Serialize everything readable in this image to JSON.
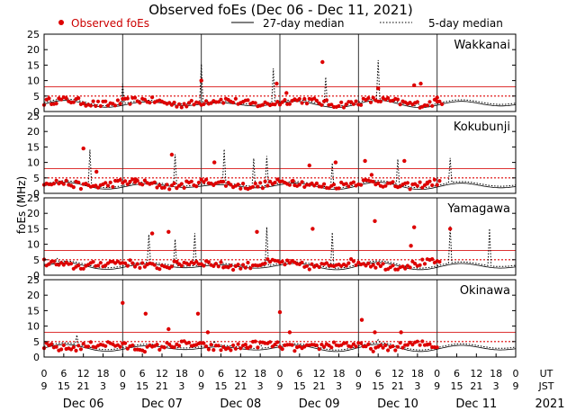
{
  "chart_data": {
    "type": "scatter",
    "title": "Observed foEs (Dec 06 - Dec 11, 2021)",
    "ylabel": "foEs (MHz)",
    "ylim": [
      0,
      25
    ],
    "yticks": [
      0,
      5,
      10,
      15,
      20,
      25
    ],
    "xlim_hours": [
      0,
      144
    ],
    "legend": {
      "observed": "Observed foEs",
      "median27": "27-day median",
      "median5": "5-day median"
    },
    "colors": {
      "observed": "#dd0000",
      "threshold_solid": "#dd3333",
      "threshold_dotted": "#dd0000",
      "median_lines": "#000000",
      "frame": "#000000"
    },
    "thresholds_mhz": {
      "solid": 8,
      "dotted": 5
    },
    "day_boundaries_hours": [
      24,
      48,
      72,
      96,
      120
    ],
    "x_tick_ut_labels": [
      "0",
      "6",
      "12",
      "18",
      "0",
      "6",
      "12",
      "18",
      "0",
      "6",
      "12",
      "18",
      "0",
      "6",
      "12",
      "18",
      "0",
      "6",
      "12",
      "18",
      "0",
      "6",
      "12",
      "18",
      "0"
    ],
    "x_tick_jst_labels": [
      "9",
      "15",
      "21",
      "3",
      "9",
      "15",
      "21",
      "3",
      "9",
      "15",
      "21",
      "3",
      "9",
      "15",
      "21",
      "3",
      "9",
      "15",
      "21",
      "3",
      "9",
      "15",
      "21",
      "3",
      "9"
    ],
    "ut_label": "UT",
    "jst_label": "JST",
    "day_labels": [
      "Dec 06",
      "Dec 07",
      "Dec 08",
      "Dec 09",
      "Dec 10",
      "Dec 11"
    ],
    "year_label": "2021",
    "stations": [
      {
        "name": "Wakkanai",
        "observed_end_hour": 122,
        "base_foes_mhz": 3,
        "spikes": [
          [
            24,
            9.5
          ],
          [
            48,
            15.5
          ],
          [
            70,
            14
          ],
          [
            86,
            12
          ],
          [
            102,
            15.5
          ],
          [
            114,
            5
          ]
        ],
        "outliers": [
          [
            48,
            10
          ],
          [
            71,
            9
          ],
          [
            74,
            6
          ],
          [
            85,
            16
          ],
          [
            102,
            7.5
          ],
          [
            113,
            8.5
          ],
          [
            115,
            9
          ],
          [
            120,
            4.5
          ]
        ]
      },
      {
        "name": "Kokubunji",
        "observed_end_hour": 121,
        "base_foes_mhz": 3,
        "spikes": [
          [
            14,
            14.5
          ],
          [
            40,
            13
          ],
          [
            55,
            14
          ],
          [
            64,
            12
          ],
          [
            68,
            12.5
          ],
          [
            88,
            11
          ],
          [
            108,
            11
          ],
          [
            124,
            11
          ]
        ],
        "outliers": [
          [
            12,
            14.5
          ],
          [
            16,
            7
          ],
          [
            28,
            4.5
          ],
          [
            39,
            12.5
          ],
          [
            52,
            10
          ],
          [
            76,
            4
          ],
          [
            81,
            9
          ],
          [
            89,
            10
          ],
          [
            98,
            10.5
          ],
          [
            100,
            6
          ],
          [
            110,
            10.5
          ],
          [
            117,
            3.5
          ]
        ]
      },
      {
        "name": "Yamagawa",
        "observed_end_hour": 121,
        "base_foes_mhz": 3.5,
        "spikes": [
          [
            4,
            4.5
          ],
          [
            32,
            12.5
          ],
          [
            40,
            12
          ],
          [
            46,
            14
          ],
          [
            68,
            16
          ],
          [
            88,
            15
          ],
          [
            124,
            15.5
          ],
          [
            136,
            15.5
          ]
        ],
        "outliers": [
          [
            33,
            13.5
          ],
          [
            38,
            14
          ],
          [
            65,
            14
          ],
          [
            82,
            15
          ],
          [
            101,
            17.5
          ],
          [
            113,
            15.5
          ],
          [
            124,
            15
          ],
          [
            112,
            9.5
          ]
        ]
      },
      {
        "name": "Okinawa",
        "observed_end_hour": 120,
        "base_foes_mhz": 3.5,
        "spikes": [
          [
            10,
            6.5
          ],
          [
            40,
            4
          ],
          [
            52,
            5
          ],
          [
            66,
            5.5
          ],
          [
            102,
            4.5
          ]
        ],
        "outliers": [
          [
            24,
            17.5
          ],
          [
            31,
            14
          ],
          [
            38,
            9
          ],
          [
            47,
            14
          ],
          [
            50,
            8
          ],
          [
            62,
            3
          ],
          [
            72,
            14.5
          ],
          [
            75,
            8
          ],
          [
            97,
            12
          ],
          [
            101,
            8
          ],
          [
            109,
            8
          ],
          [
            117,
            4
          ]
        ]
      }
    ]
  }
}
